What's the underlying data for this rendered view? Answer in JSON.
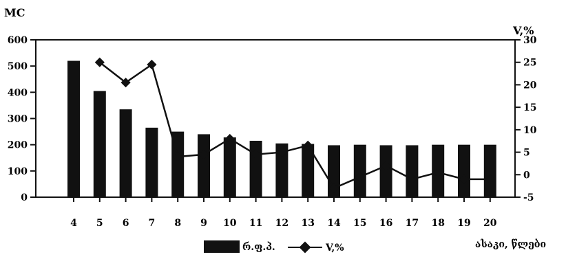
{
  "chart_data": {
    "type": "bar",
    "y_left_label": "MC",
    "y_right_label": "V,%",
    "x_axis_label": "ასაკი, წლები",
    "categories": [
      "4",
      "5",
      "6",
      "7",
      "8",
      "9",
      "10",
      "11",
      "12",
      "13",
      "14",
      "15",
      "16",
      "17",
      "18",
      "19",
      "20"
    ],
    "series": [
      {
        "name": "რ.ფ.პ.",
        "type": "bar",
        "axis": "left",
        "values": [
          520,
          405,
          335,
          265,
          250,
          240,
          228,
          215,
          205,
          203,
          198,
          200,
          198,
          198,
          200,
          200,
          200
        ]
      },
      {
        "name": "V,%",
        "type": "line",
        "axis": "right",
        "x": [
          "5",
          "6",
          "7",
          "8",
          "9",
          "10",
          "11",
          "12",
          "13",
          "14",
          "15",
          "16",
          "17",
          "18",
          "19",
          "20"
        ],
        "values": [
          25,
          20.5,
          24.5,
          4,
          4.5,
          8,
          4.5,
          5,
          6.5,
          -3,
          -0.5,
          2,
          -1,
          0.5,
          -1,
          -1
        ]
      }
    ],
    "y_left_lim": [
      0,
      600
    ],
    "y_left_ticks": [
      0,
      100,
      200,
      300,
      400,
      500,
      600
    ],
    "y_right_lim": [
      -5,
      30
    ],
    "y_right_ticks": [
      -5,
      0,
      5,
      10,
      15,
      20,
      25,
      30
    ],
    "legend": {
      "position": "bottom"
    },
    "grid": false,
    "colors": {
      "bar": "#111111",
      "line": "#111111"
    }
  }
}
